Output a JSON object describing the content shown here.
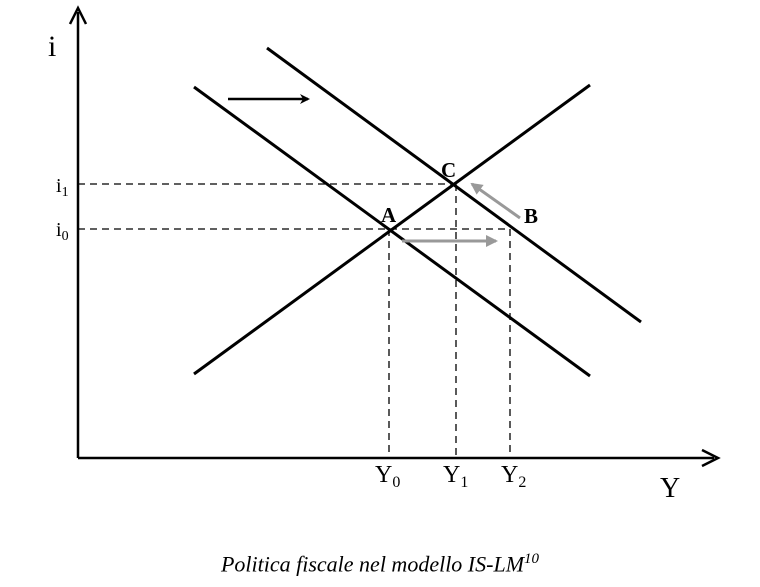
{
  "axes": {
    "y_label": "i",
    "x_label": "Y"
  },
  "rates": {
    "i1": {
      "base": "i",
      "sub": "1"
    },
    "i0": {
      "base": "i",
      "sub": "0"
    }
  },
  "incomes": {
    "y0": {
      "base": "Y",
      "sub": "0"
    },
    "y1": {
      "base": "Y",
      "sub": "1"
    },
    "y2": {
      "base": "Y",
      "sub": "2"
    }
  },
  "points": {
    "a": "A",
    "b": "B",
    "c": "C"
  },
  "caption": {
    "text": "Politica fiscale nel modello IS-LM",
    "footnote": "10"
  },
  "colors": {
    "line": "#000000",
    "adjustment_arrow": "#999999"
  },
  "icons": {
    "shift": "right-arrow-icon",
    "adjustment": "gray-arrow-icon"
  }
}
